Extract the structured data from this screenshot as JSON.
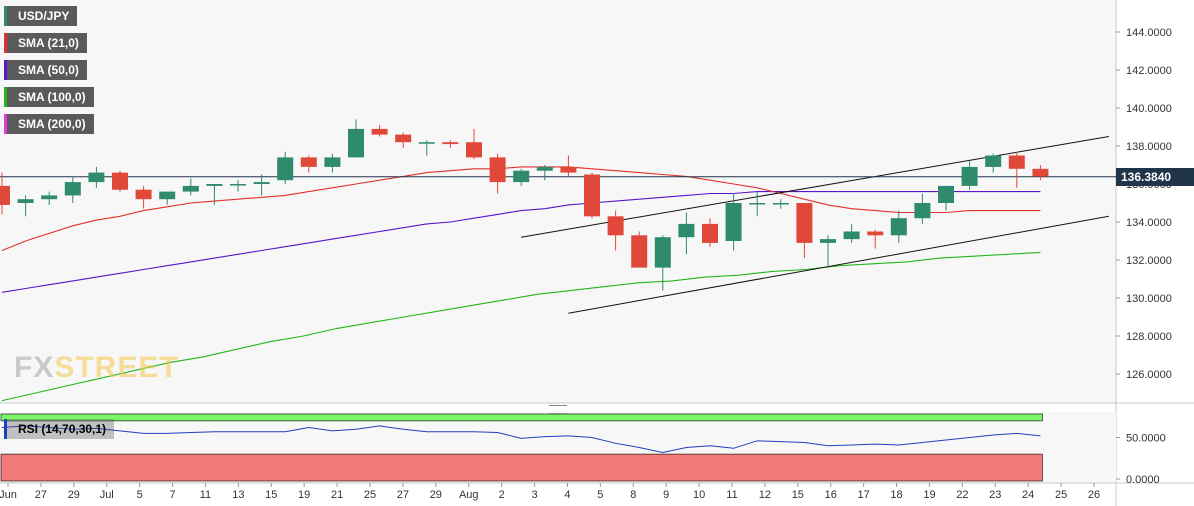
{
  "chart_data": {
    "type": "candlestick",
    "symbol": "USD/JPY",
    "current_price": 136.384,
    "current_price_label": "136.3840",
    "y_ticks": [
      "144.0000",
      "142.0000",
      "140.0000",
      "138.0000",
      "136.0000",
      "134.0000",
      "132.0000",
      "130.0000",
      "128.0000",
      "126.0000"
    ],
    "y_tick_values": [
      144,
      142,
      140,
      138,
      136,
      134,
      132,
      130,
      128,
      126
    ],
    "ylim": [
      124.5,
      146.2
    ],
    "x_labels": [
      "Jun",
      "27",
      "29",
      "Jul",
      "5",
      "7",
      "11",
      "13",
      "15",
      "19",
      "21",
      "25",
      "27",
      "29",
      "Aug",
      "2",
      "3",
      "4",
      "5",
      "8",
      "9",
      "10",
      "11",
      "12",
      "15",
      "16",
      "17",
      "18",
      "19",
      "22",
      "23",
      "24",
      "25",
      "26"
    ],
    "legend": [
      {
        "label": "USD/JPY",
        "color": "#2e8b6e"
      },
      {
        "label": "SMA (21,0)",
        "color": "#e0312b"
      },
      {
        "label": "SMA (50,0)",
        "color": "#5a16c8"
      },
      {
        "label": "SMA (100,0)",
        "color": "#22b81a"
      },
      {
        "label": "SMA (200,0)",
        "color": "#e23ad6"
      }
    ],
    "candles": [
      {
        "date": "Jun 23",
        "o": 135.9,
        "h": 136.6,
        "l": 134.4,
        "c": 134.9
      },
      {
        "date": "Jun 24",
        "o": 135.0,
        "h": 135.4,
        "l": 134.3,
        "c": 135.2
      },
      {
        "date": "Jun 27",
        "o": 135.2,
        "h": 135.6,
        "l": 134.9,
        "c": 135.4
      },
      {
        "date": "Jun 28",
        "o": 135.4,
        "h": 136.4,
        "l": 135.0,
        "c": 136.1
      },
      {
        "date": "Jun 29",
        "o": 136.1,
        "h": 136.9,
        "l": 135.8,
        "c": 136.6
      },
      {
        "date": "Jun 30",
        "o": 136.6,
        "h": 136.7,
        "l": 135.6,
        "c": 135.7
      },
      {
        "date": "Jul 1",
        "o": 135.7,
        "h": 135.9,
        "l": 134.7,
        "c": 135.2
      },
      {
        "date": "Jul 4",
        "o": 135.2,
        "h": 135.6,
        "l": 134.9,
        "c": 135.6
      },
      {
        "date": "Jul 5",
        "o": 135.6,
        "h": 136.3,
        "l": 135.4,
        "c": 135.9
      },
      {
        "date": "Jul 6",
        "o": 135.9,
        "h": 136.0,
        "l": 134.9,
        "c": 136.0
      },
      {
        "date": "Jul 7",
        "o": 136.0,
        "h": 136.2,
        "l": 135.6,
        "c": 136.0
      },
      {
        "date": "Jul 8",
        "o": 136.0,
        "h": 136.5,
        "l": 135.4,
        "c": 136.1
      },
      {
        "date": "Jul 11",
        "o": 136.2,
        "h": 137.7,
        "l": 136.0,
        "c": 137.4
      },
      {
        "date": "Jul 12",
        "o": 137.4,
        "h": 137.5,
        "l": 136.6,
        "c": 136.9
      },
      {
        "date": "Jul 13",
        "o": 136.9,
        "h": 137.6,
        "l": 136.6,
        "c": 137.4
      },
      {
        "date": "Jul 14",
        "o": 137.4,
        "h": 139.4,
        "l": 137.4,
        "c": 138.9
      },
      {
        "date": "Jul 15",
        "o": 138.9,
        "h": 139.1,
        "l": 138.5,
        "c": 138.6
      },
      {
        "date": "Jul 18",
        "o": 138.6,
        "h": 138.7,
        "l": 137.9,
        "c": 138.2
      },
      {
        "date": "Jul 19",
        "o": 138.2,
        "h": 138.3,
        "l": 137.5,
        "c": 138.2
      },
      {
        "date": "Jul 20",
        "o": 138.2,
        "h": 138.3,
        "l": 137.9,
        "c": 138.1
      },
      {
        "date": "Jul 21",
        "o": 138.2,
        "h": 138.9,
        "l": 137.3,
        "c": 137.4
      },
      {
        "date": "Jul 22",
        "o": 137.4,
        "h": 137.6,
        "l": 135.5,
        "c": 136.1
      },
      {
        "date": "Jul 25",
        "o": 136.1,
        "h": 136.8,
        "l": 135.9,
        "c": 136.7
      },
      {
        "date": "Jul 26",
        "o": 136.7,
        "h": 137.0,
        "l": 136.2,
        "c": 136.9
      },
      {
        "date": "Jul 27",
        "o": 136.9,
        "h": 137.5,
        "l": 136.4,
        "c": 136.6
      },
      {
        "date": "Jul 28",
        "o": 136.5,
        "h": 136.6,
        "l": 134.2,
        "c": 134.3
      },
      {
        "date": "Jul 29",
        "o": 134.3,
        "h": 134.6,
        "l": 132.5,
        "c": 133.3
      },
      {
        "date": "Aug 1",
        "o": 133.3,
        "h": 133.5,
        "l": 131.6,
        "c": 131.6
      },
      {
        "date": "Aug 2",
        "o": 131.6,
        "h": 133.3,
        "l": 130.4,
        "c": 133.2
      },
      {
        "date": "Aug 3",
        "o": 133.2,
        "h": 134.5,
        "l": 132.3,
        "c": 133.9
      },
      {
        "date": "Aug 4",
        "o": 133.9,
        "h": 134.2,
        "l": 132.7,
        "c": 132.9
      },
      {
        "date": "Aug 5",
        "o": 133.0,
        "h": 135.5,
        "l": 132.5,
        "c": 135.0
      },
      {
        "date": "Aug 8",
        "o": 135.0,
        "h": 135.6,
        "l": 134.3,
        "c": 135.0
      },
      {
        "date": "Aug 9",
        "o": 135.0,
        "h": 135.2,
        "l": 134.7,
        "c": 135.0
      },
      {
        "date": "Aug 10",
        "o": 135.0,
        "h": 135.0,
        "l": 132.1,
        "c": 132.9
      },
      {
        "date": "Aug 11",
        "o": 132.9,
        "h": 133.3,
        "l": 131.7,
        "c": 133.1
      },
      {
        "date": "Aug 12",
        "o": 133.1,
        "h": 133.9,
        "l": 132.9,
        "c": 133.5
      },
      {
        "date": "Aug 15",
        "o": 133.5,
        "h": 133.6,
        "l": 132.6,
        "c": 133.3
      },
      {
        "date": "Aug 16",
        "o": 133.3,
        "h": 134.6,
        "l": 132.9,
        "c": 134.2
      },
      {
        "date": "Aug 17",
        "o": 134.2,
        "h": 135.5,
        "l": 133.9,
        "c": 135.0
      },
      {
        "date": "Aug 18",
        "o": 135.0,
        "h": 135.9,
        "l": 134.6,
        "c": 135.9
      },
      {
        "date": "Aug 19",
        "o": 135.9,
        "h": 137.2,
        "l": 135.7,
        "c": 136.9
      },
      {
        "date": "Aug 22",
        "o": 136.9,
        "h": 137.6,
        "l": 136.6,
        "c": 137.5
      },
      {
        "date": "Aug 23",
        "o": 137.5,
        "h": 137.7,
        "l": 135.8,
        "c": 136.8
      },
      {
        "date": "Aug 24",
        "o": 136.8,
        "h": 137.0,
        "l": 136.2,
        "c": 136.4
      }
    ],
    "sma21": [
      132.5,
      133.0,
      133.4,
      133.8,
      134.1,
      134.3,
      134.6,
      134.8,
      135.0,
      135.1,
      135.2,
      135.3,
      135.4,
      135.6,
      135.8,
      136.0,
      136.2,
      136.4,
      136.6,
      136.7,
      136.8,
      136.8,
      136.9,
      136.9,
      136.9,
      136.8,
      136.7,
      136.6,
      136.5,
      136.4,
      136.2,
      136.0,
      135.8,
      135.5,
      135.2,
      134.9,
      134.7,
      134.6,
      134.5,
      134.5,
      134.5,
      134.6,
      134.6,
      134.6,
      134.6
    ],
    "sma50": [
      130.3,
      130.5,
      130.7,
      130.9,
      131.1,
      131.3,
      131.5,
      131.7,
      131.9,
      132.1,
      132.3,
      132.5,
      132.7,
      132.9,
      133.1,
      133.3,
      133.5,
      133.7,
      133.9,
      134.0,
      134.2,
      134.4,
      134.6,
      134.7,
      134.9,
      135.0,
      135.1,
      135.2,
      135.3,
      135.4,
      135.5,
      135.5,
      135.6,
      135.6,
      135.6,
      135.6,
      135.6,
      135.6,
      135.6,
      135.6,
      135.6,
      135.6,
      135.6,
      135.6,
      135.6
    ],
    "sma100": [
      124.6,
      125.0,
      125.4,
      125.8,
      126.2,
      126.6,
      126.9,
      127.3,
      127.7,
      128.0,
      128.4,
      128.7,
      129.0,
      129.3,
      129.6,
      129.9,
      130.2,
      130.4,
      130.6,
      130.8,
      130.9,
      131.1,
      131.2,
      131.4,
      131.5,
      131.7,
      131.8,
      131.9,
      132.1,
      132.2,
      132.3,
      132.4
    ],
    "trendlines": [
      {
        "name": "upper",
        "points": [
          [
            "Jul 25",
            133.2
          ],
          [
            "Aug 26",
            138.5
          ]
        ]
      },
      {
        "name": "lower",
        "points": [
          [
            "Jul 27",
            129.2
          ],
          [
            "Aug 26",
            134.3
          ]
        ]
      }
    ],
    "rsi": {
      "label": "RSI (14,70,30,1)",
      "y_ticks": [
        "50.0000",
        "0.0000"
      ],
      "y_tick_values": [
        50,
        0
      ],
      "upper_band": 70,
      "lower_band": 30,
      "values": [
        62,
        64,
        62,
        60,
        61,
        58,
        55,
        55,
        56,
        57,
        57,
        57,
        57,
        62,
        58,
        60,
        64,
        60,
        57,
        57,
        57,
        56,
        49,
        51,
        52,
        50,
        43,
        38,
        32,
        38,
        40,
        37,
        46,
        45,
        44,
        40,
        41,
        42,
        41,
        44,
        47,
        50,
        53,
        55,
        52
      ]
    }
  },
  "watermark": {
    "fx": "FX",
    "street": "STREET"
  },
  "colors": {
    "up": "#2e8b6e",
    "down": "#e0493a",
    "bull_zone": "#7cf56b",
    "bear_zone": "#f47a7a",
    "rsi_line": "#1f3fbf"
  }
}
